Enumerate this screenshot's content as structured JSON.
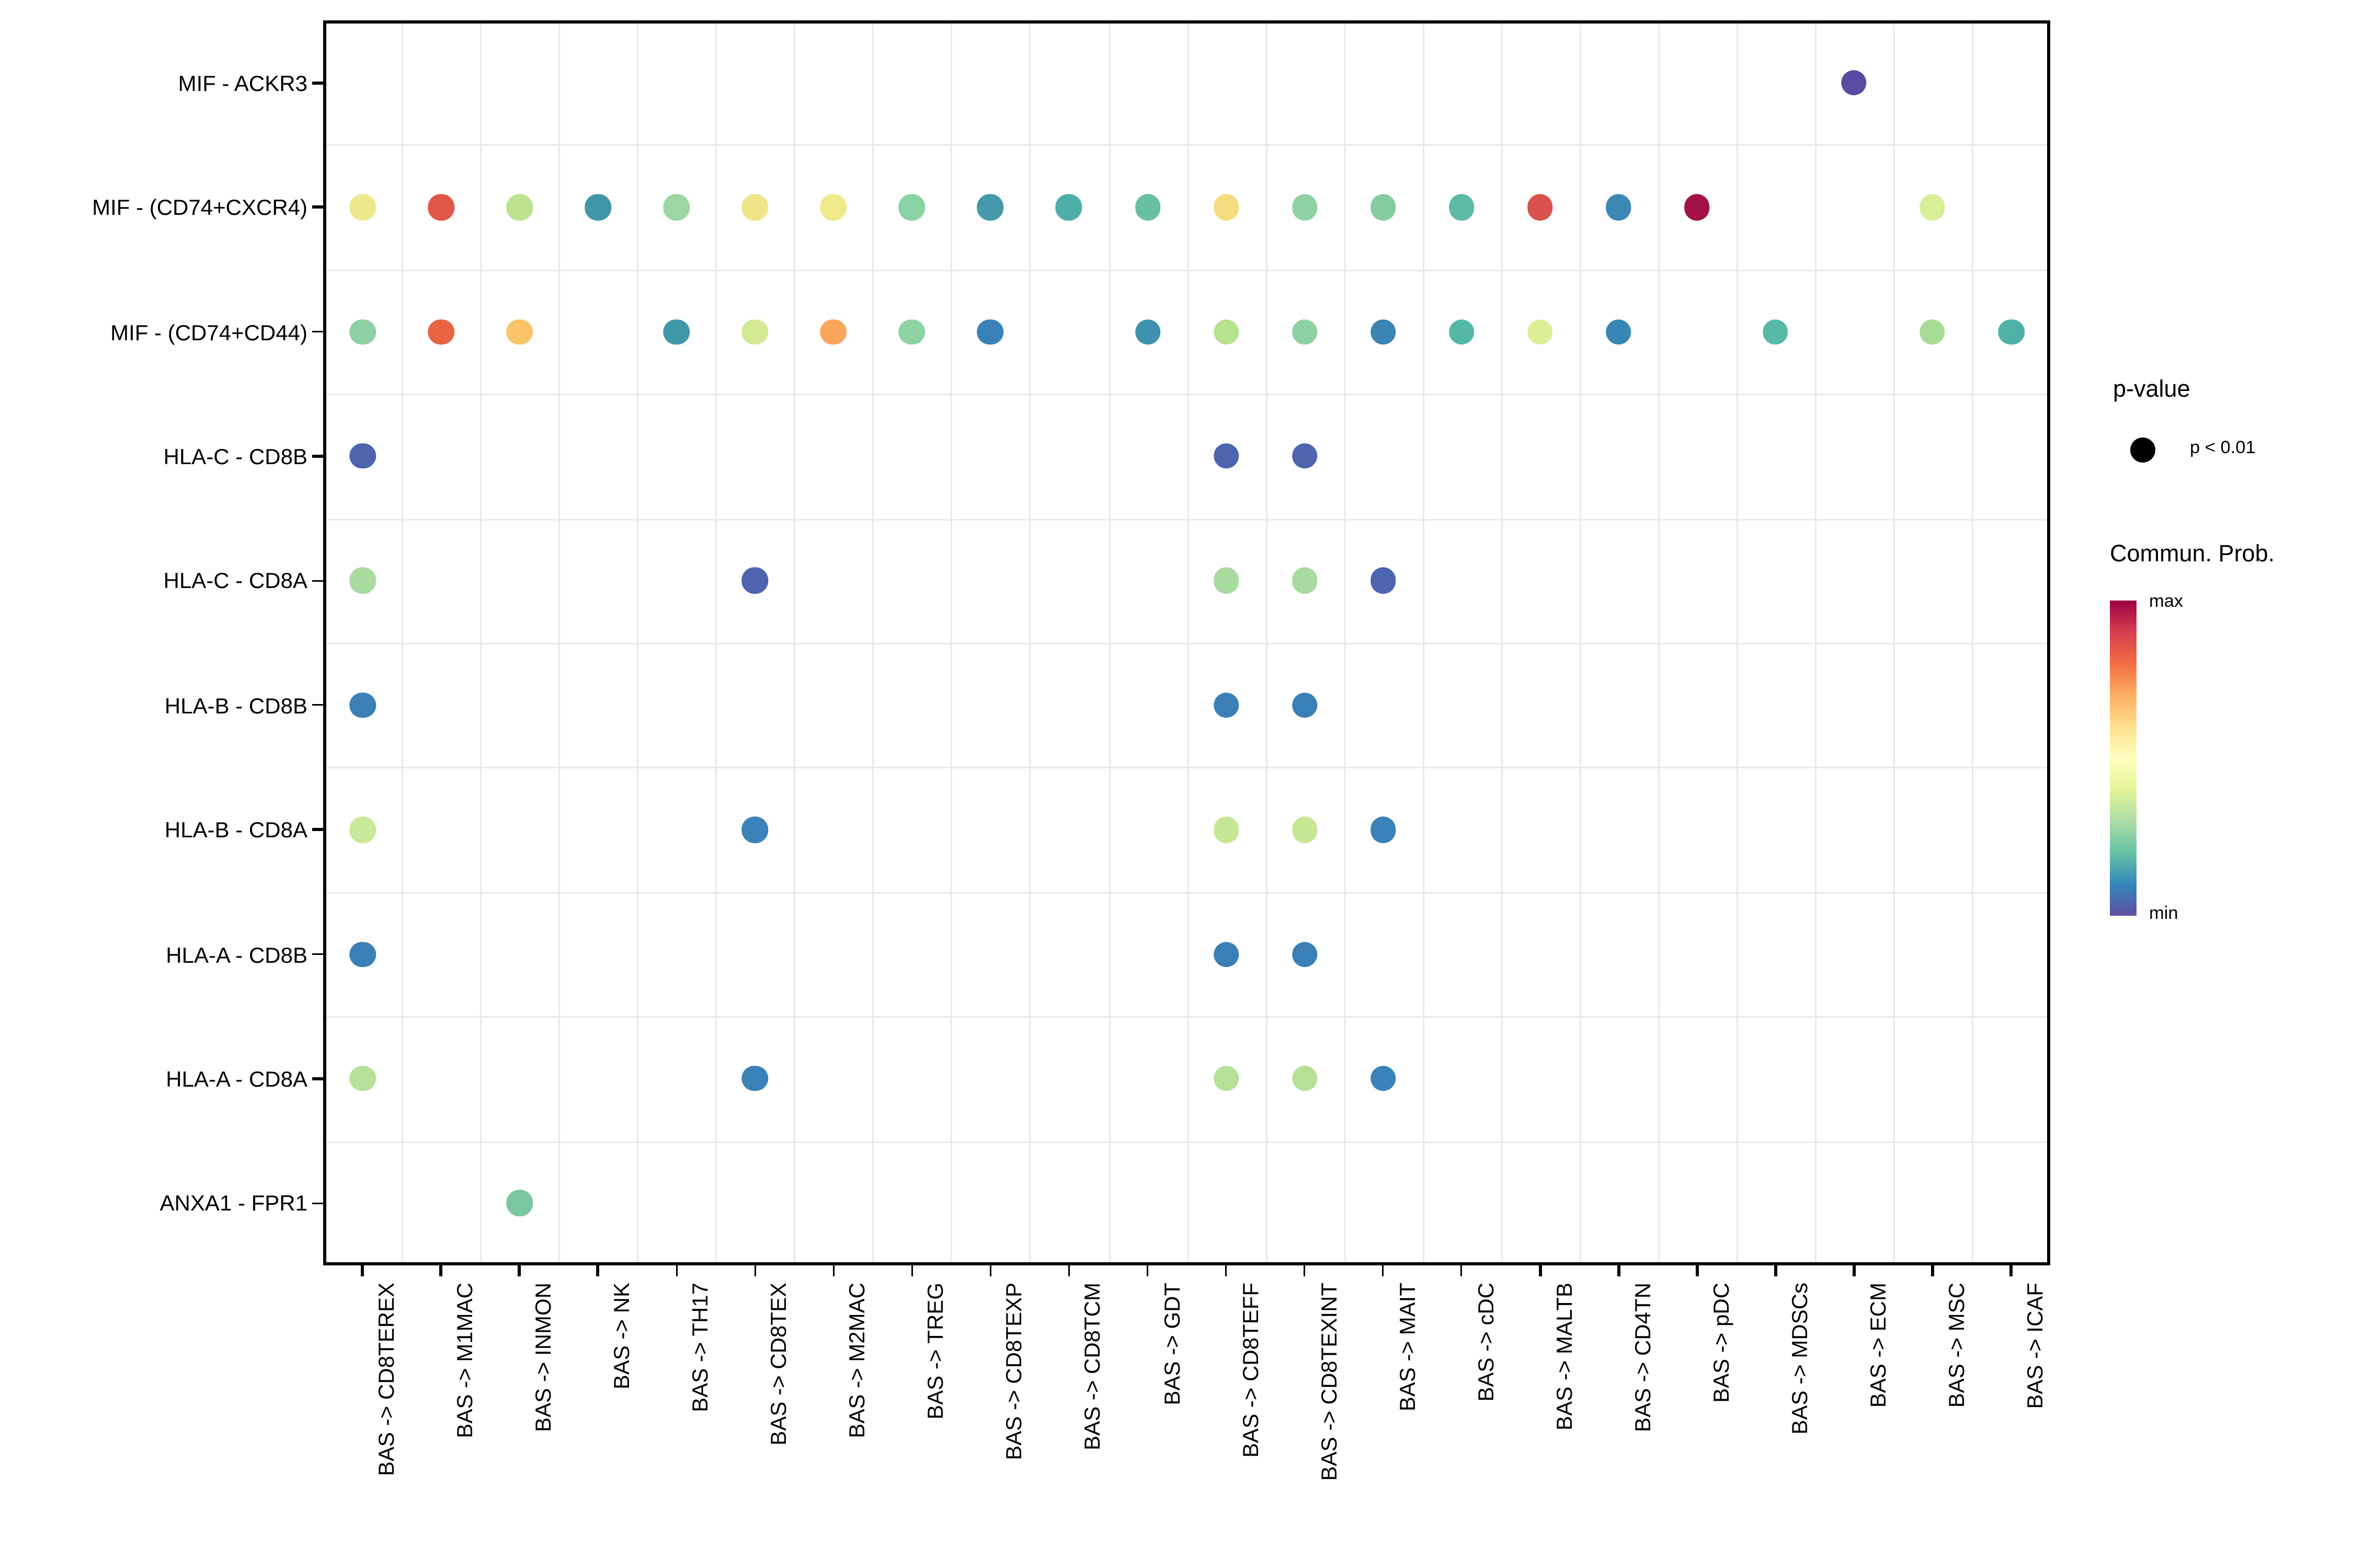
{
  "legend": {
    "pvalue": {
      "title": "p-value",
      "item_label": "p < 0.01",
      "dot_color": "#000000"
    },
    "colorbar": {
      "title": "Commun. Prob.",
      "max_label": "max",
      "min_label": "min",
      "gradient_top_to_bottom": [
        "#9e0142",
        "#d53e4f",
        "#f46d43",
        "#fdae61",
        "#fee08b",
        "#ffffbf",
        "#e6f598",
        "#abdda4",
        "#66c2a5",
        "#3288bd",
        "#5e4fa2"
      ]
    }
  },
  "colors": {
    "background": "#ffffff",
    "panel_border": "#000000",
    "gridline": "#e9e9e9",
    "text": "#000000"
  },
  "chart_data": {
    "type": "scatter",
    "subtype": "dot-matrix-bubble-plot",
    "title": "",
    "xlabel": "",
    "ylabel": "",
    "grid": "light gray lines at category boundaries, black panel border",
    "legend_position": "right",
    "value_encoding": "dot color encodes communication probability on reversed Spectral colormap (min = #5e4fa2 violet, max = #9e0142 dark red); dot shown only where p < 0.01",
    "x_categories": [
      "BAS -> CD8TEREX",
      "BAS -> M1MAC",
      "BAS -> INMON",
      "BAS -> NK",
      "BAS -> TH17",
      "BAS -> CD8TEX",
      "BAS -> M2MAC",
      "BAS -> TREG",
      "BAS -> CD8TEXP",
      "BAS -> CD8TCM",
      "BAS -> GDT",
      "BAS -> CD8TEFF",
      "BAS -> CD8TEXINT",
      "BAS -> MAIT",
      "BAS -> cDC",
      "BAS -> MALTB",
      "BAS -> CD4TN",
      "BAS -> pDC",
      "BAS -> MDSCs",
      "BAS -> ECM",
      "BAS -> MSC",
      "BAS -> ICAF"
    ],
    "y_categories": [
      "MIF - ACKR3",
      "MIF - (CD74+CXCR4)",
      "MIF - (CD74+CD44)",
      "HLA-C - CD8B",
      "HLA-C - CD8A",
      "HLA-B - CD8B",
      "HLA-B - CD8A",
      "HLA-A - CD8B",
      "HLA-A - CD8A",
      "ANXA1 - FPR1"
    ],
    "points": [
      {
        "row": 0,
        "col": 19,
        "color": "#5b4ba0"
      },
      {
        "row": 1,
        "col": 0,
        "color": "#ece98b"
      },
      {
        "row": 1,
        "col": 1,
        "color": "#e25549"
      },
      {
        "row": 1,
        "col": 2,
        "color": "#bce48f"
      },
      {
        "row": 1,
        "col": 3,
        "color": "#4096a8"
      },
      {
        "row": 1,
        "col": 4,
        "color": "#9cd7a2"
      },
      {
        "row": 1,
        "col": 5,
        "color": "#efe487"
      },
      {
        "row": 1,
        "col": 6,
        "color": "#eeea8b"
      },
      {
        "row": 1,
        "col": 7,
        "color": "#8bd2a4"
      },
      {
        "row": 1,
        "col": 8,
        "color": "#4699aa"
      },
      {
        "row": 1,
        "col": 9,
        "color": "#4fada7"
      },
      {
        "row": 1,
        "col": 10,
        "color": "#67c0a0"
      },
      {
        "row": 1,
        "col": 11,
        "color": "#f5dc80"
      },
      {
        "row": 1,
        "col": 12,
        "color": "#8fd2a2"
      },
      {
        "row": 1,
        "col": 13,
        "color": "#83cda0"
      },
      {
        "row": 1,
        "col": 14,
        "color": "#5bbba5"
      },
      {
        "row": 1,
        "col": 15,
        "color": "#d9534c"
      },
      {
        "row": 1,
        "col": 16,
        "color": "#3d87b3"
      },
      {
        "row": 1,
        "col": 17,
        "color": "#a31148"
      },
      {
        "row": 1,
        "col": 20,
        "color": "#d8ee97"
      },
      {
        "row": 2,
        "col": 0,
        "color": "#8cd0a3"
      },
      {
        "row": 2,
        "col": 1,
        "color": "#e96442"
      },
      {
        "row": 2,
        "col": 2,
        "color": "#f9c469"
      },
      {
        "row": 2,
        "col": 4,
        "color": "#3f98a8"
      },
      {
        "row": 2,
        "col": 5,
        "color": "#d4ea92"
      },
      {
        "row": 2,
        "col": 6,
        "color": "#f9a65b"
      },
      {
        "row": 2,
        "col": 7,
        "color": "#90d3a2"
      },
      {
        "row": 2,
        "col": 8,
        "color": "#3981b9"
      },
      {
        "row": 2,
        "col": 10,
        "color": "#3e92ae"
      },
      {
        "row": 2,
        "col": 11,
        "color": "#b6e18e"
      },
      {
        "row": 2,
        "col": 12,
        "color": "#8dd1a2"
      },
      {
        "row": 2,
        "col": 13,
        "color": "#3a85b4"
      },
      {
        "row": 2,
        "col": 14,
        "color": "#54b8a5"
      },
      {
        "row": 2,
        "col": 15,
        "color": "#dcee96"
      },
      {
        "row": 2,
        "col": 16,
        "color": "#3786b6"
      },
      {
        "row": 2,
        "col": 18,
        "color": "#57baa6"
      },
      {
        "row": 2,
        "col": 20,
        "color": "#a9dc95"
      },
      {
        "row": 2,
        "col": 21,
        "color": "#4db2a6"
      },
      {
        "row": 3,
        "col": 0,
        "color": "#4d64ae"
      },
      {
        "row": 3,
        "col": 11,
        "color": "#4d64ae"
      },
      {
        "row": 3,
        "col": 12,
        "color": "#4d64ae"
      },
      {
        "row": 4,
        "col": 0,
        "color": "#a9daa0"
      },
      {
        "row": 4,
        "col": 5,
        "color": "#4d64ae"
      },
      {
        "row": 4,
        "col": 11,
        "color": "#a9daa0"
      },
      {
        "row": 4,
        "col": 12,
        "color": "#a9daa0"
      },
      {
        "row": 4,
        "col": 13,
        "color": "#4d64ae"
      },
      {
        "row": 5,
        "col": 0,
        "color": "#3a7fb5"
      },
      {
        "row": 5,
        "col": 11,
        "color": "#3a7fb5"
      },
      {
        "row": 5,
        "col": 12,
        "color": "#3a7fb5"
      },
      {
        "row": 6,
        "col": 0,
        "color": "#c9e89a"
      },
      {
        "row": 6,
        "col": 5,
        "color": "#3a82b8"
      },
      {
        "row": 6,
        "col": 11,
        "color": "#c7e795"
      },
      {
        "row": 6,
        "col": 12,
        "color": "#c7e795"
      },
      {
        "row": 6,
        "col": 13,
        "color": "#3a82b8"
      },
      {
        "row": 7,
        "col": 0,
        "color": "#3a7fb5"
      },
      {
        "row": 7,
        "col": 11,
        "color": "#3a7fb5"
      },
      {
        "row": 7,
        "col": 12,
        "color": "#3a7fb5"
      },
      {
        "row": 8,
        "col": 0,
        "color": "#b7e098"
      },
      {
        "row": 8,
        "col": 5,
        "color": "#3a82b8"
      },
      {
        "row": 8,
        "col": 11,
        "color": "#b5e095"
      },
      {
        "row": 8,
        "col": 12,
        "color": "#b5e095"
      },
      {
        "row": 8,
        "col": 13,
        "color": "#3a82b8"
      },
      {
        "row": 9,
        "col": 2,
        "color": "#7bc8a0"
      }
    ]
  }
}
